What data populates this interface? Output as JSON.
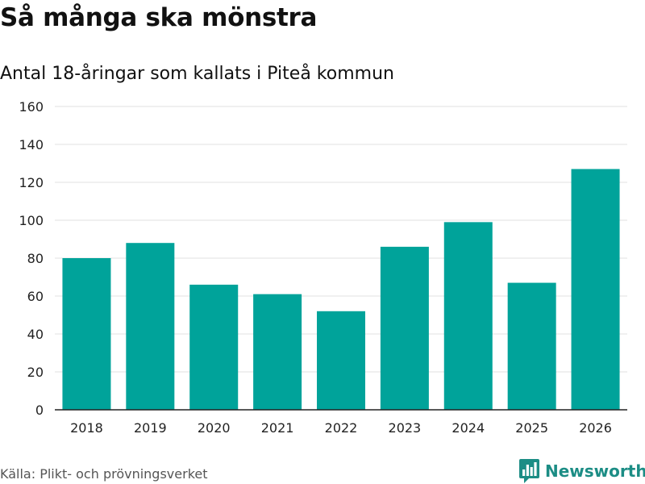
{
  "header": {
    "title": "Så många ska mönstra",
    "subtitle": "Antal 18-åringar som kallats i Piteå kommun"
  },
  "footer": {
    "source": "Källa: Plikt- och prövningsverket",
    "brand": "Newsworthy",
    "brand_color": "#1c8d85",
    "brand_icon": "bar-chart-speech-bubble-icon"
  },
  "colors": {
    "bar": "#00a39a",
    "grid": "#e0e0e0",
    "axis": "#222222"
  },
  "chart_data": {
    "type": "bar",
    "title": "Så många ska mönstra",
    "subtitle": "Antal 18-åringar som kallats i Piteå kommun",
    "xlabel": "",
    "ylabel": "",
    "categories": [
      "2018",
      "2019",
      "2020",
      "2021",
      "2022",
      "2023",
      "2024",
      "2025",
      "2026"
    ],
    "values": [
      80,
      88,
      66,
      61,
      52,
      86,
      99,
      67,
      127
    ],
    "ylim": [
      0,
      160
    ],
    "yticks": [
      0,
      20,
      40,
      60,
      80,
      100,
      120,
      140,
      160
    ],
    "grid": true,
    "legend": "none"
  }
}
